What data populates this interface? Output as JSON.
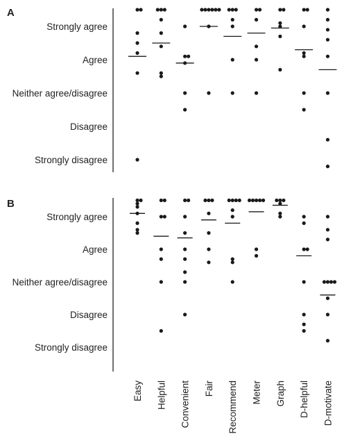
{
  "chart_data": {
    "type": "scatter",
    "categories": [
      "Easy",
      "Helpful",
      "Convenient",
      "Fair",
      "Recommend",
      "Meter",
      "Graph",
      "D-helpful",
      "D-motivate"
    ],
    "y_categories": [
      "Strongly agree",
      "Agree",
      "Neither agree/disagree",
      "Disagree",
      "Strongly disagree"
    ],
    "y_values_note": "5 = Strongly agree ... 1 = Strongly disagree",
    "ylim": [
      0.7,
      5.5
    ],
    "marker_color": "#1a1a1a",
    "panels": [
      {
        "label": "A",
        "points": [
          [
            5.5,
            5.5,
            4.8,
            4.5,
            4.2,
            3.6,
            1.0
          ],
          [
            5.5,
            5.5,
            5.5,
            5.2,
            4.8,
            4.4,
            3.6,
            3.5
          ],
          [
            5.0,
            4.1,
            4.1,
            3.9,
            3.0,
            2.5
          ],
          [
            5.5,
            5.5,
            5.5,
            5.5,
            5.5,
            5.5,
            5.0,
            3.0
          ],
          [
            5.5,
            5.5,
            5.5,
            5.2,
            5.0,
            4.0,
            3.0
          ],
          [
            5.5,
            5.5,
            5.2,
            4.4,
            4.0,
            3.0
          ],
          [
            5.5,
            5.5,
            5.1,
            5.0,
            4.7,
            3.7
          ],
          [
            5.5,
            5.5,
            5.0,
            4.2,
            4.1,
            3.0,
            2.5
          ],
          [
            5.5,
            5.2,
            4.9,
            4.6,
            4.1,
            3.0,
            1.6,
            0.8
          ]
        ],
        "means": [
          4.1,
          4.5,
          3.9,
          5.0,
          4.7,
          4.8,
          4.95,
          4.3,
          3.7
        ]
      },
      {
        "label": "B",
        "points": [
          [
            5.5,
            5.5,
            5.4,
            5.3,
            5.1,
            4.8,
            4.6,
            4.5
          ],
          [
            5.5,
            5.5,
            5.0,
            5.0,
            4.0,
            3.7,
            3.0,
            1.5
          ],
          [
            5.5,
            5.5,
            5.0,
            4.5,
            4.0,
            3.7,
            3.3,
            3.0,
            2.0
          ],
          [
            5.5,
            5.5,
            5.5,
            5.1,
            4.5,
            4.0,
            3.6
          ],
          [
            5.5,
            5.5,
            5.5,
            5.5,
            5.2,
            5.0,
            3.7,
            3.6,
            3.0
          ],
          [
            5.5,
            5.5,
            5.5,
            5.5,
            5.5,
            4.0,
            3.8
          ],
          [
            5.5,
            5.5,
            5.5,
            5.4,
            5.1,
            5.0
          ],
          [
            5.0,
            4.8,
            4.0,
            4.0,
            3.0,
            2.0,
            1.7,
            1.5
          ],
          [
            5.0,
            4.6,
            4.3,
            3.0,
            3.0,
            3.0,
            3.0,
            2.5,
            2.0,
            1.2
          ]
        ],
        "means": [
          5.1,
          4.4,
          4.35,
          4.9,
          4.8,
          5.15,
          5.35,
          3.8,
          2.6
        ]
      }
    ]
  }
}
